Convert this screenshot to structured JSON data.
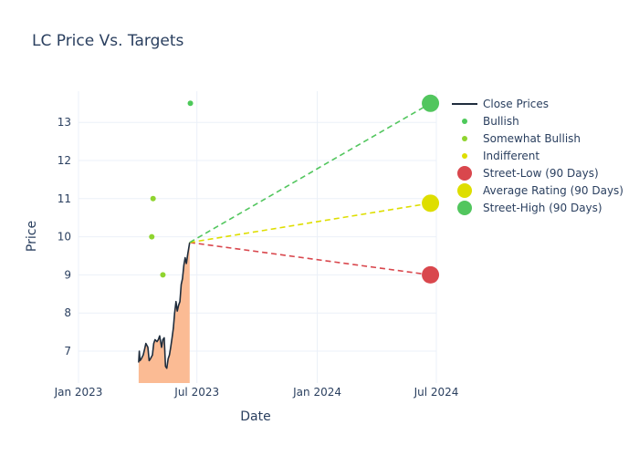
{
  "chart_data": {
    "type": "line",
    "title": "LC Price Vs. Targets",
    "xlabel": "Date",
    "ylabel": "Price",
    "x_ticks": [
      "Jan 2023",
      "Jul 2023",
      "Jan 2024",
      "Jul 2024"
    ],
    "y_ticks": [
      7,
      8,
      9,
      10,
      11,
      12,
      13
    ],
    "xlim": [
      "2022-12-01",
      "2024-07-01"
    ],
    "ylim": [
      6.2,
      13.8
    ],
    "grid": true,
    "legend_position": "right",
    "close_prices": {
      "name": "Close Prices",
      "color": "#1f2d3d",
      "fill_color": "#fbbb94",
      "points": [
        [
          "2023-04-03",
          6.7
        ],
        [
          "2023-04-04",
          7.0
        ],
        [
          "2023-04-05",
          6.75
        ],
        [
          "2023-04-07",
          6.8
        ],
        [
          "2023-04-10",
          6.9
        ],
        [
          "2023-04-12",
          7.05
        ],
        [
          "2023-04-14",
          7.2
        ],
        [
          "2023-04-17",
          7.1
        ],
        [
          "2023-04-19",
          6.75
        ],
        [
          "2023-04-21",
          6.8
        ],
        [
          "2023-04-24",
          6.9
        ],
        [
          "2023-04-26",
          7.2
        ],
        [
          "2023-04-28",
          7.3
        ],
        [
          "2023-05-01",
          7.25
        ],
        [
          "2023-05-03",
          7.3
        ],
        [
          "2023-05-05",
          7.4
        ],
        [
          "2023-05-08",
          7.1
        ],
        [
          "2023-05-10",
          7.3
        ],
        [
          "2023-05-12",
          7.35
        ],
        [
          "2023-05-14",
          6.6
        ],
        [
          "2023-05-16",
          6.55
        ],
        [
          "2023-05-18",
          6.8
        ],
        [
          "2023-05-20",
          6.9
        ],
        [
          "2023-05-22",
          7.1
        ],
        [
          "2023-05-24",
          7.35
        ],
        [
          "2023-05-26",
          7.6
        ],
        [
          "2023-05-28",
          8.0
        ],
        [
          "2023-05-30",
          8.3
        ],
        [
          "2023-06-01",
          8.05
        ],
        [
          "2023-06-03",
          8.2
        ],
        [
          "2023-06-05",
          8.3
        ],
        [
          "2023-06-07",
          8.75
        ],
        [
          "2023-06-09",
          8.9
        ],
        [
          "2023-06-11",
          9.25
        ],
        [
          "2023-06-13",
          9.45
        ],
        [
          "2023-06-15",
          9.3
        ],
        [
          "2023-06-17",
          9.55
        ],
        [
          "2023-06-20",
          9.85
        ]
      ]
    },
    "ratings": [
      {
        "name": "Bullish",
        "color": "#4dc95a",
        "points": [
          [
            "2023-06-21",
            13.5
          ]
        ]
      },
      {
        "name": "Somewhat Bullish",
        "color": "#8fd42f",
        "points": [
          [
            "2023-04-25",
            11.0
          ],
          [
            "2023-04-23",
            10.0
          ],
          [
            "2023-05-10",
            9.0
          ]
        ]
      },
      {
        "name": "Indifferent",
        "color": "#dede00",
        "points": []
      }
    ],
    "targets": {
      "origin": [
        "2023-06-20",
        9.85
      ],
      "target_date": "2024-06-22",
      "series": [
        {
          "name": "Street-Low (90 Days)",
          "color": "#d9474d",
          "value": 9.0
        },
        {
          "name": "Average Rating (90 Days)",
          "color": "#dede00",
          "value": 10.88
        },
        {
          "name": "Street-High (90 Days)",
          "color": "#52c65e",
          "value": 13.5
        }
      ]
    },
    "legend": [
      {
        "label": "Close Prices",
        "kind": "line",
        "color": "#1f2d3d"
      },
      {
        "label": "Bullish",
        "kind": "dot",
        "color": "#4dc95a"
      },
      {
        "label": "Somewhat Bullish",
        "kind": "dot",
        "color": "#8fd42f"
      },
      {
        "label": "Indifferent",
        "kind": "dot",
        "color": "#dede00"
      },
      {
        "label": "Street-Low (90 Days)",
        "kind": "circle",
        "color": "#d9474d"
      },
      {
        "label": "Average Rating (90 Days)",
        "kind": "circle",
        "color": "#dede00"
      },
      {
        "label": "Street-High (90 Days)",
        "kind": "circle",
        "color": "#52c65e"
      }
    ]
  }
}
